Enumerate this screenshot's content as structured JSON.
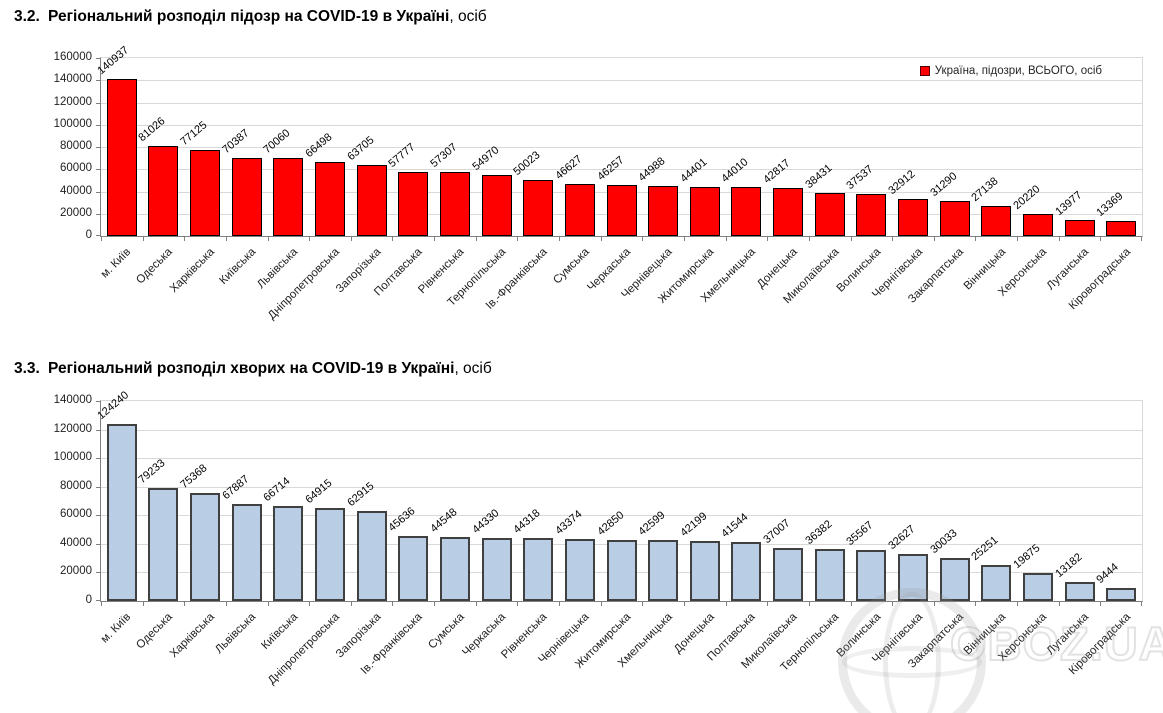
{
  "page": {
    "watermark": "OBOZ.UA"
  },
  "chart_data": [
    {
      "type": "bar",
      "section_number": "3.2.",
      "title": "Регіональний розподіл підозр на COVID-19 в Україні",
      "title_suffix": ", осіб",
      "legend": [
        {
          "label": "Україна, підозри, ВСЬОГО, осіб",
          "color": "#FF0000"
        }
      ],
      "legend_position": "top-right",
      "bar_color": "#FF0000",
      "bar_border_color": "#000000",
      "grid": true,
      "ylim": [
        0,
        160000
      ],
      "ytick_step": 20000,
      "xlabel": "",
      "ylabel": "",
      "categories": [
        "м. Київ",
        "Одеська",
        "Харківська",
        "Київська",
        "Львівська",
        "Дніпропетровська",
        "Запорізька",
        "Полтавська",
        "Рівненська",
        "Тернопільська",
        "Ів.-Франківська",
        "Сумська",
        "Черкаська",
        "Чернівецька",
        "Житомирська",
        "Хмельницька",
        "Донецька",
        "Миколаївська",
        "Волинська",
        "Чернігівська",
        "Закарпатська",
        "Вінницька",
        "Херсонська",
        "Луганська",
        "Кіровоградська"
      ],
      "values": [
        140937,
        81026,
        77125,
        70387,
        70060,
        66498,
        63705,
        57777,
        57307,
        54970,
        50023,
        46627,
        46257,
        44988,
        44401,
        44010,
        42817,
        38431,
        37537,
        32912,
        31290,
        27138,
        20220,
        13977,
        13369
      ]
    },
    {
      "type": "bar",
      "section_number": "3.3.",
      "title": "Регіональний розподіл хворих на COVID-19 в Україні",
      "title_suffix": ", осіб",
      "legend": [],
      "bar_color": "#B9CDE5",
      "bar_border_color": "#404040",
      "grid": true,
      "ylim": [
        0,
        140000
      ],
      "ytick_step": 20000,
      "xlabel": "",
      "ylabel": "",
      "categories": [
        "м. Київ",
        "Одеська",
        "Харківська",
        "Львівська",
        "Київська",
        "Дніпропетровська",
        "Запорізька",
        "Ів.-Франківська",
        "Сумська",
        "Черкаська",
        "Рівненська",
        "Чернівецька",
        "Житомирська",
        "Хмельницька",
        "Донецька",
        "Полтавська",
        "Миколаївська",
        "Тернопільська",
        "Волинська",
        "Чернігівська",
        "Закарпатська",
        "Вінницька",
        "Херсонська",
        "Луганська",
        "Кіровоградська"
      ],
      "values": [
        124240,
        79233,
        75368,
        67887,
        66714,
        64915,
        62915,
        45636,
        44548,
        44330,
        44318,
        43374,
        42850,
        42599,
        42199,
        41544,
        37007,
        36382,
        35567,
        32627,
        30033,
        25251,
        19875,
        13182,
        9444
      ]
    }
  ]
}
